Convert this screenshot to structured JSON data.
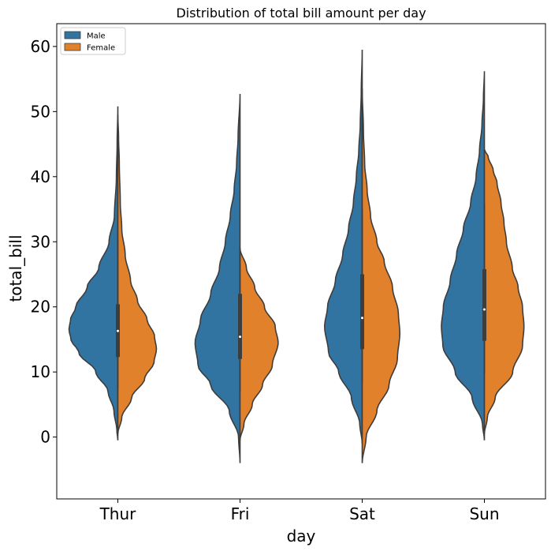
{
  "chart_data": {
    "type": "violin",
    "title": "Distribution of total bill amount per day",
    "xlabel": "day",
    "ylabel": "total_bill",
    "categories": [
      "Thur",
      "Fri",
      "Sat",
      "Sun"
    ],
    "ylim": [
      -9.5,
      63.5
    ],
    "yticks": [
      0,
      10,
      20,
      30,
      40,
      50,
      60
    ],
    "split": true,
    "grid": false,
    "legend": {
      "placement": "top-left",
      "entries": [
        "Male",
        "Female"
      ]
    },
    "series": [
      {
        "name": "Male",
        "color": "#3274a1",
        "side": "left",
        "violins": [
          {
            "category": "Thur",
            "ymin": -0.5,
            "ymax": 50.8,
            "mode": 16.5,
            "max_density": 1.0,
            "q1": 12.3,
            "median": 16.3,
            "q3": 20.4,
            "profile": [
              [
                -0.5,
                0.0
              ],
              [
                1,
                0.02
              ],
              [
                4,
                0.08
              ],
              [
                7,
                0.2
              ],
              [
                10,
                0.45
              ],
              [
                13,
                0.8
              ],
              [
                15,
                0.96
              ],
              [
                16.5,
                1.0
              ],
              [
                18,
                0.97
              ],
              [
                20,
                0.86
              ],
              [
                23,
                0.63
              ],
              [
                26,
                0.39
              ],
              [
                30,
                0.18
              ],
              [
                34,
                0.07
              ],
              [
                40,
                0.03
              ],
              [
                45,
                0.015
              ],
              [
                50.8,
                0.0
              ]
            ]
          },
          {
            "category": "Fri",
            "ymin": -4,
            "ymax": 52.7,
            "mode": 14.5,
            "max_density": 0.92,
            "q1": 12.0,
            "median": 15.4,
            "q3": 22.0,
            "profile": [
              [
                -4,
                0.0
              ],
              [
                0,
                0.03
              ],
              [
                4,
                0.22
              ],
              [
                8,
                0.6
              ],
              [
                11,
                0.86
              ],
              [
                14.5,
                0.92
              ],
              [
                18,
                0.81
              ],
              [
                22,
                0.6
              ],
              [
                26,
                0.42
              ],
              [
                30,
                0.3
              ],
              [
                34,
                0.2
              ],
              [
                38,
                0.12
              ],
              [
                42,
                0.07
              ],
              [
                46,
                0.04
              ],
              [
                52.7,
                0.0
              ]
            ]
          },
          {
            "category": "Sat",
            "ymin": -1,
            "ymax": 59.5,
            "mode": 17,
            "max_density": 0.77,
            "q1": 13.5,
            "median": 18.3,
            "q3": 25.0,
            "profile": [
              [
                -1,
                0.0
              ],
              [
                2,
                0.05
              ],
              [
                6,
                0.22
              ],
              [
                10,
                0.48
              ],
              [
                13,
                0.69
              ],
              [
                17,
                0.77
              ],
              [
                20,
                0.71
              ],
              [
                24,
                0.55
              ],
              [
                28,
                0.4
              ],
              [
                32,
                0.28
              ],
              [
                36,
                0.18
              ],
              [
                40,
                0.12
              ],
              [
                44,
                0.07
              ],
              [
                48,
                0.04
              ],
              [
                53,
                0.02
              ],
              [
                59.5,
                0.0
              ]
            ]
          },
          {
            "category": "Sun",
            "ymin": -0.5,
            "ymax": 56.2,
            "mode": 17,
            "max_density": 0.88,
            "q1": 14.8,
            "median": 19.6,
            "q3": 25.8,
            "profile": [
              [
                -0.5,
                0.0
              ],
              [
                2,
                0.04
              ],
              [
                6,
                0.25
              ],
              [
                10,
                0.6
              ],
              [
                14,
                0.85
              ],
              [
                17,
                0.88
              ],
              [
                20,
                0.84
              ],
              [
                24,
                0.7
              ],
              [
                28,
                0.57
              ],
              [
                32,
                0.43
              ],
              [
                36,
                0.28
              ],
              [
                40,
                0.17
              ],
              [
                44,
                0.1
              ],
              [
                48,
                0.05
              ],
              [
                52,
                0.02
              ],
              [
                56.2,
                0.0
              ]
            ]
          }
        ]
      },
      {
        "name": "Female",
        "color": "#e1812c",
        "side": "right",
        "violins": [
          {
            "category": "Thur",
            "ymin": 0.5,
            "ymax": 49.5,
            "mode": 13.5,
            "max_density": 0.79,
            "q1": 12.3,
            "median": 16.3,
            "q3": 20.4,
            "profile": [
              [
                0.5,
                0.0
              ],
              [
                3,
                0.08
              ],
              [
                6,
                0.28
              ],
              [
                9,
                0.55
              ],
              [
                11.5,
                0.74
              ],
              [
                13.5,
                0.79
              ],
              [
                15.5,
                0.75
              ],
              [
                18,
                0.6
              ],
              [
                21,
                0.4
              ],
              [
                24,
                0.26
              ],
              [
                28,
                0.15
              ],
              [
                32,
                0.08
              ],
              [
                36,
                0.05
              ],
              [
                42,
                0.03
              ],
              [
                46,
                0.015
              ],
              [
                49.5,
                0.0
              ]
            ]
          },
          {
            "category": "Fri",
            "ymin": -0.5,
            "ymax": 29,
            "mode": 14.5,
            "max_density": 0.78,
            "q1": 12.0,
            "median": 15.4,
            "q3": 22.0,
            "profile": [
              [
                -0.5,
                0.0
              ],
              [
                2,
                0.08
              ],
              [
                5,
                0.25
              ],
              [
                8,
                0.46
              ],
              [
                11,
                0.66
              ],
              [
                14.5,
                0.78
              ],
              [
                17,
                0.72
              ],
              [
                20,
                0.5
              ],
              [
                23,
                0.3
              ],
              [
                26,
                0.13
              ],
              [
                29,
                0.0
              ]
            ]
          },
          {
            "category": "Sat",
            "ymin": -4,
            "ymax": 53.5,
            "mode": 16,
            "max_density": 0.77,
            "q1": 13.5,
            "median": 18.3,
            "q3": 25.0,
            "profile": [
              [
                -4,
                0.0
              ],
              [
                0,
                0.08
              ],
              [
                4,
                0.3
              ],
              [
                8,
                0.55
              ],
              [
                12,
                0.72
              ],
              [
                16,
                0.77
              ],
              [
                19,
                0.74
              ],
              [
                23,
                0.62
              ],
              [
                27,
                0.45
              ],
              [
                30,
                0.3
              ],
              [
                34,
                0.17
              ],
              [
                38,
                0.1
              ],
              [
                42,
                0.05
              ],
              [
                47,
                0.025
              ],
              [
                53.5,
                0.0
              ]
            ]
          },
          {
            "category": "Sun",
            "ymin": 0.5,
            "ymax": 44.2,
            "mode": 17,
            "max_density": 0.81,
            "q1": 14.8,
            "median": 19.6,
            "q3": 25.8,
            "profile": [
              [
                0.5,
                0.0
              ],
              [
                3,
                0.06
              ],
              [
                6,
                0.22
              ],
              [
                10,
                0.58
              ],
              [
                14,
                0.78
              ],
              [
                17,
                0.81
              ],
              [
                20,
                0.78
              ],
              [
                23,
                0.69
              ],
              [
                26,
                0.57
              ],
              [
                30,
                0.45
              ],
              [
                33,
                0.4
              ],
              [
                36,
                0.34
              ],
              [
                39,
                0.26
              ],
              [
                41,
                0.18
              ],
              [
                43,
                0.08
              ],
              [
                44.2,
                0.0
              ]
            ]
          }
        ]
      }
    ]
  }
}
